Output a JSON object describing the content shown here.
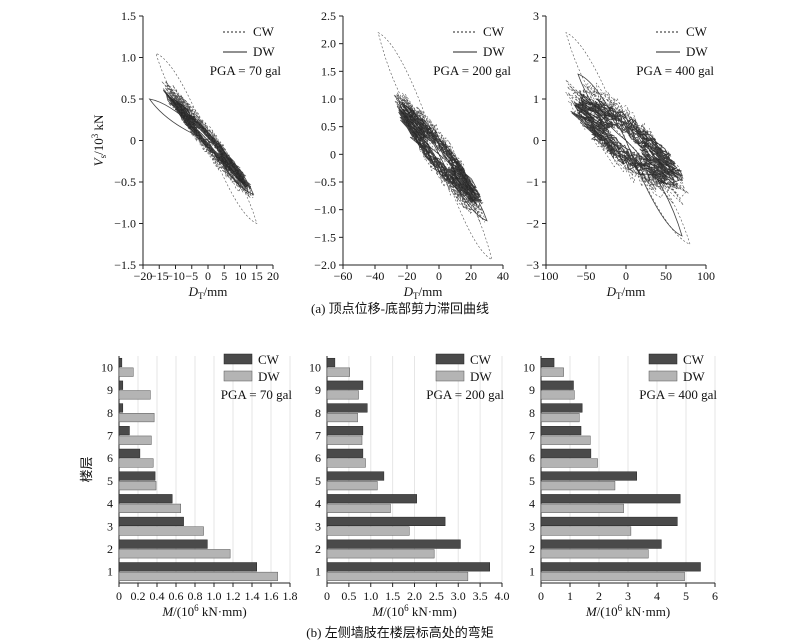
{
  "figure": {
    "caption_a": "(a) 顶点位移-底部剪力滞回曲线",
    "caption_b": "(b) 左侧墙肢在楼层标高处的弯矩"
  },
  "colors": {
    "cw_bar": "#4a4a4a",
    "dw_bar": "#b4b4b4",
    "axis": "#222222",
    "grid": "#e6e6e6",
    "curve_cw": "#333333",
    "curve_dw": "#222222"
  },
  "chart_data": [
    {
      "id": "hyst-70",
      "type": "line",
      "pga_label": "PGA = 70 gal",
      "xlabel": "D_T/mm",
      "ylabel": "V_s/10^3 kN",
      "xlim": [
        -20,
        20
      ],
      "ylim": [
        -1.5,
        1.5
      ],
      "xticks": [
        "−20",
        "−15",
        "−10",
        "−5",
        "0",
        "5",
        "10",
        "15",
        "20"
      ],
      "xtick_values": [
        -20,
        -15,
        -10,
        -5,
        0,
        5,
        10,
        15,
        20
      ],
      "yticks": [
        "1.5",
        "1.0",
        "0.5",
        "0",
        "−0.5",
        "−1.0",
        "−1.5"
      ],
      "ytick_values": [
        1.5,
        1.0,
        0.5,
        0,
        -0.5,
        -1.0,
        -1.5
      ],
      "legend": [
        "CW",
        "DW"
      ],
      "series": [
        {
          "name": "CW",
          "style": "dashed",
          "amp_x": 15,
          "slope": -0.045,
          "spread": 0.45,
          "peak": [
            [
              -16,
              1.05
            ],
            [
              15,
              -1.0
            ]
          ]
        },
        {
          "name": "DW",
          "style": "solid",
          "amp_x": 14,
          "slope": -0.04,
          "spread": 0.25,
          "peak": [
            [
              -18,
              0.5
            ],
            [
              14,
              -0.65
            ]
          ]
        }
      ]
    },
    {
      "id": "hyst-200",
      "type": "line",
      "pga_label": "PGA = 200 gal",
      "xlabel": "D_T/mm",
      "ylabel": "",
      "xlim": [
        -60,
        40
      ],
      "ylim": [
        -2.0,
        2.5
      ],
      "xticks": [
        "−60",
        "−40",
        "−20",
        "0",
        "20",
        "40"
      ],
      "xtick_values": [
        -60,
        -40,
        -20,
        0,
        20,
        40
      ],
      "yticks": [
        "2.5",
        "2.0",
        "1.5",
        "1.0",
        "0.5",
        "0",
        "−0.5",
        "−1.0",
        "−1.5",
        "−2.0"
      ],
      "ytick_values": [
        2.5,
        2.0,
        1.5,
        1.0,
        0.5,
        0,
        -0.5,
        -1.0,
        -1.5,
        -2.0
      ],
      "legend": [
        "CW",
        "DW"
      ],
      "series": [
        {
          "name": "CW",
          "style": "dashed",
          "amp_x": 30,
          "slope": -0.035,
          "spread": 1.1,
          "peak": [
            [
              -38,
              2.2
            ],
            [
              33,
              -1.9
            ]
          ]
        },
        {
          "name": "DW",
          "style": "solid",
          "amp_x": 28,
          "slope": -0.03,
          "spread": 0.8,
          "peak": [
            [
              -25,
              0.95
            ],
            [
              30,
              -1.2
            ]
          ]
        }
      ]
    },
    {
      "id": "hyst-400",
      "type": "line",
      "pga_label": "PGA = 400 gal",
      "xlabel": "D_T/mm",
      "ylabel": "",
      "xlim": [
        -100,
        100
      ],
      "ylim": [
        -3,
        3
      ],
      "xticks": [
        "−100",
        "−50",
        "0",
        "50",
        "100"
      ],
      "xtick_values": [
        -100,
        -50,
        0,
        50,
        100
      ],
      "yticks": [
        "3",
        "2",
        "1",
        "0",
        "−1",
        "−2",
        "−3"
      ],
      "ytick_values": [
        3,
        2,
        1,
        0,
        -1,
        -2,
        -3
      ],
      "legend": [
        "CW",
        "DW"
      ],
      "series": [
        {
          "name": "CW",
          "style": "dashed",
          "amp_x": 80,
          "slope": -0.015,
          "spread": 2.0,
          "peak": [
            [
              -75,
              2.6
            ],
            [
              80,
              -2.5
            ]
          ]
        },
        {
          "name": "DW",
          "style": "solid",
          "amp_x": 75,
          "slope": -0.012,
          "spread": 1.5,
          "peak": [
            [
              -60,
              1.6
            ],
            [
              70,
              -2.3
            ]
          ]
        }
      ]
    },
    {
      "id": "moment-70",
      "type": "bar",
      "pga_label": "PGA = 70 gal",
      "ylabel": "楼层",
      "xlabel": "M/(10^6 kN·mm)",
      "categories": [
        "1",
        "2",
        "3",
        "4",
        "5",
        "6",
        "7",
        "8",
        "9",
        "10"
      ],
      "xlim": [
        0,
        1.8
      ],
      "xticks": [
        "0",
        "0.2",
        "0.4",
        "0.6",
        "0.8",
        "1.0",
        "1.2",
        "1.4",
        "1.6",
        "1.8"
      ],
      "xtick_values": [
        0,
        0.2,
        0.4,
        0.6,
        0.8,
        1.0,
        1.2,
        1.4,
        1.6,
        1.8
      ],
      "legend": [
        "CW",
        "DW"
      ],
      "series": [
        {
          "name": "CW",
          "values": [
            1.45,
            0.93,
            0.68,
            0.56,
            0.38,
            0.22,
            0.11,
            0.04,
            0.04,
            0.03
          ]
        },
        {
          "name": "DW",
          "values": [
            1.67,
            1.17,
            0.89,
            0.65,
            0.39,
            0.36,
            0.34,
            0.37,
            0.33,
            0.15
          ]
        }
      ]
    },
    {
      "id": "moment-200",
      "type": "bar",
      "pga_label": "PGA = 200 gal",
      "ylabel": "",
      "xlabel": "M/(10^6 kN·mm)",
      "categories": [
        "1",
        "2",
        "3",
        "4",
        "5",
        "6",
        "7",
        "8",
        "9",
        "10"
      ],
      "xlim": [
        0,
        4.0
      ],
      "xticks": [
        "0",
        "0.5",
        "1.0",
        "1.5",
        "2.0",
        "2.5",
        "3.0",
        "3.5",
        "4.0"
      ],
      "xtick_values": [
        0,
        0.5,
        1.0,
        1.5,
        2.0,
        2.5,
        3.0,
        3.5,
        4.0
      ],
      "legend": [
        "CW",
        "DW"
      ],
      "series": [
        {
          "name": "CW",
          "values": [
            3.72,
            3.05,
            2.7,
            2.05,
            1.3,
            0.82,
            0.82,
            0.92,
            0.82,
            0.18
          ]
        },
        {
          "name": "DW",
          "values": [
            3.22,
            2.45,
            1.88,
            1.45,
            1.15,
            0.88,
            0.8,
            0.7,
            0.72,
            0.52
          ]
        }
      ]
    },
    {
      "id": "moment-400",
      "type": "bar",
      "pga_label": "PGA = 400 gal",
      "ylabel": "",
      "xlabel": "M/(10^6 kN·mm)",
      "categories": [
        "1",
        "2",
        "3",
        "4",
        "5",
        "6",
        "7",
        "8",
        "9",
        "10"
      ],
      "xlim": [
        0,
        6
      ],
      "xticks": [
        "0",
        "1",
        "2",
        "3",
        "4",
        "5",
        "6"
      ],
      "xtick_values": [
        0,
        1,
        2,
        3,
        4,
        5,
        6
      ],
      "legend": [
        "CW",
        "DW"
      ],
      "series": [
        {
          "name": "CW",
          "values": [
            5.5,
            4.15,
            4.7,
            4.8,
            3.3,
            1.72,
            1.38,
            1.42,
            1.12,
            0.45
          ]
        },
        {
          "name": "DW",
          "values": [
            4.95,
            3.7,
            3.1,
            2.85,
            2.55,
            1.95,
            1.7,
            1.32,
            1.15,
            0.78
          ]
        }
      ]
    }
  ]
}
